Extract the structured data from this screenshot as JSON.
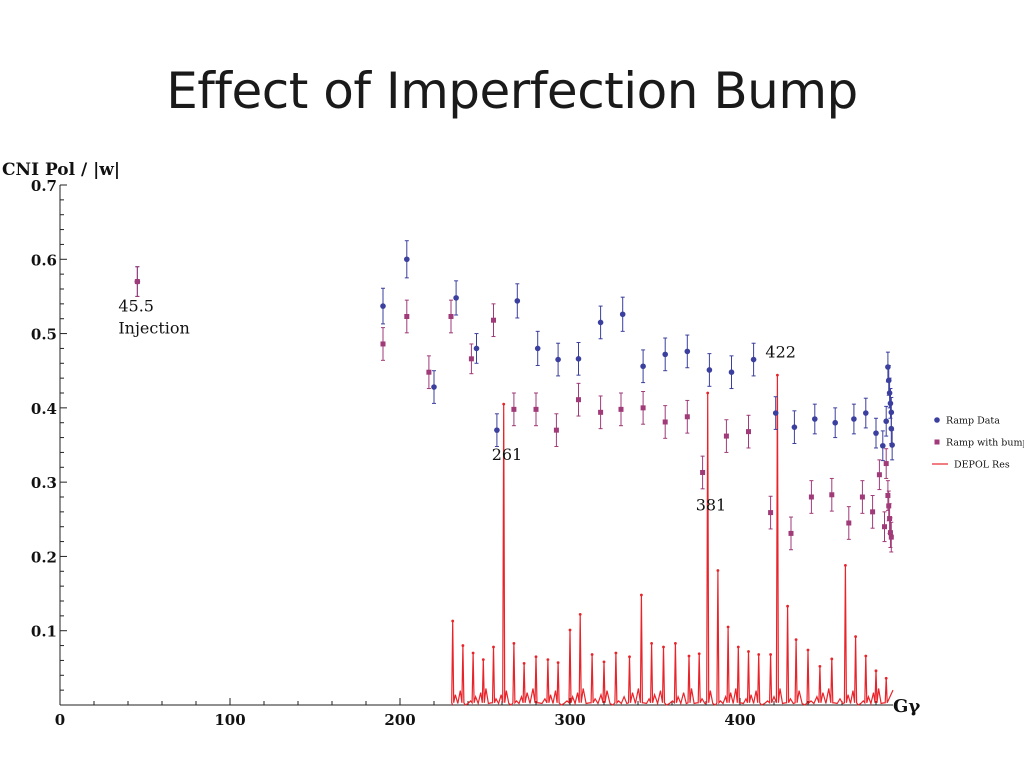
{
  "slide": {
    "title": "Effect of Imperfection Bump"
  },
  "chart_data": {
    "type": "scatter",
    "title": "",
    "ylabel": "CNI Pol / |w|",
    "xlabel": "Gγ",
    "xlim": [
      0,
      490
    ],
    "ylim": [
      0,
      0.7
    ],
    "x_ticks": [
      0,
      100,
      200,
      300,
      400
    ],
    "y_ticks": [
      0.1,
      0.2,
      0.3,
      0.4,
      0.5,
      0.6,
      0.7
    ],
    "x_tick_labels": [
      "0",
      "100",
      "200",
      "300",
      "400"
    ],
    "y_tick_labels": [
      "0.1",
      "0.2",
      "0.3",
      "0.4",
      "0.5",
      "0.6",
      "0.7"
    ],
    "legend_position": "right",
    "series": [
      {
        "name": "Ramp Data",
        "color": "#3b3f9e",
        "marker": "circle",
        "points": [
          [
            45.5,
            0.57,
            0.02
          ],
          [
            190,
            0.537,
            0.024
          ],
          [
            204,
            0.6,
            0.025
          ],
          [
            220,
            0.428,
            0.022
          ],
          [
            233,
            0.548,
            0.023
          ],
          [
            245,
            0.48,
            0.02
          ],
          [
            257,
            0.37,
            0.022
          ],
          [
            269,
            0.544,
            0.023
          ],
          [
            281,
            0.48,
            0.023
          ],
          [
            293,
            0.465,
            0.022
          ],
          [
            305,
            0.466,
            0.022
          ],
          [
            318,
            0.515,
            0.022
          ],
          [
            331,
            0.526,
            0.023
          ],
          [
            343,
            0.456,
            0.022
          ],
          [
            356,
            0.472,
            0.022
          ],
          [
            369,
            0.476,
            0.022
          ],
          [
            382,
            0.451,
            0.022
          ],
          [
            395,
            0.448,
            0.022
          ],
          [
            408,
            0.465,
            0.022
          ],
          [
            421,
            0.393,
            0.022
          ],
          [
            432,
            0.374,
            0.022
          ],
          [
            444,
            0.385,
            0.02
          ],
          [
            456,
            0.38,
            0.02
          ],
          [
            467,
            0.385,
            0.02
          ],
          [
            474,
            0.393,
            0.02
          ],
          [
            480,
            0.366,
            0.02
          ],
          [
            484,
            0.349,
            0.02
          ],
          [
            486,
            0.382,
            0.02
          ],
          [
            487,
            0.455,
            0.02
          ],
          [
            487.5,
            0.437,
            0.02
          ],
          [
            488,
            0.42,
            0.02
          ],
          [
            488.5,
            0.406,
            0.02
          ],
          [
            489,
            0.394,
            0.02
          ],
          [
            489,
            0.372,
            0.02
          ],
          [
            489.5,
            0.35,
            0.02
          ]
        ]
      },
      {
        "name": "Ramp with bump",
        "color": "#a03a78",
        "marker": "square",
        "points": [
          [
            45.5,
            0.57,
            0.02
          ],
          [
            190,
            0.486,
            0.022
          ],
          [
            204,
            0.523,
            0.022
          ],
          [
            217,
            0.448,
            0.022
          ],
          [
            230,
            0.523,
            0.022
          ],
          [
            242,
            0.466,
            0.02
          ],
          [
            255,
            0.518,
            0.022
          ],
          [
            267,
            0.398,
            0.022
          ],
          [
            280,
            0.398,
            0.022
          ],
          [
            292,
            0.37,
            0.022
          ],
          [
            305,
            0.411,
            0.022
          ],
          [
            318,
            0.394,
            0.022
          ],
          [
            330,
            0.398,
            0.022
          ],
          [
            343,
            0.4,
            0.022
          ],
          [
            356,
            0.381,
            0.022
          ],
          [
            369,
            0.388,
            0.022
          ],
          [
            378,
            0.313,
            0.022
          ],
          [
            392,
            0.362,
            0.022
          ],
          [
            405,
            0.368,
            0.022
          ],
          [
            418,
            0.259,
            0.022
          ],
          [
            430,
            0.231,
            0.022
          ],
          [
            442,
            0.28,
            0.022
          ],
          [
            454,
            0.283,
            0.022
          ],
          [
            464,
            0.245,
            0.022
          ],
          [
            472,
            0.28,
            0.022
          ],
          [
            478,
            0.26,
            0.022
          ],
          [
            482,
            0.31,
            0.02
          ],
          [
            485,
            0.24,
            0.02
          ],
          [
            486,
            0.325,
            0.02
          ],
          [
            487,
            0.282,
            0.02
          ],
          [
            487.5,
            0.268,
            0.02
          ],
          [
            488,
            0.251,
            0.02
          ],
          [
            488.5,
            0.232,
            0.02
          ],
          [
            489,
            0.226,
            0.02
          ]
        ]
      },
      {
        "name": "DEPOL Res",
        "color": "#e8242a",
        "type": "line",
        "x_start": 231,
        "x_end": 490,
        "peaks": [
          [
            231,
            0.113
          ],
          [
            237,
            0.08
          ],
          [
            243,
            0.07
          ],
          [
            249,
            0.061
          ],
          [
            255,
            0.078
          ],
          [
            261,
            0.405
          ],
          [
            267,
            0.083
          ],
          [
            273,
            0.056
          ],
          [
            280,
            0.065
          ],
          [
            287,
            0.061
          ],
          [
            293,
            0.057
          ],
          [
            300,
            0.101
          ],
          [
            306,
            0.122
          ],
          [
            313,
            0.068
          ],
          [
            320,
            0.058
          ],
          [
            327,
            0.07
          ],
          [
            335,
            0.065
          ],
          [
            342,
            0.148
          ],
          [
            348,
            0.083
          ],
          [
            355,
            0.078
          ],
          [
            362,
            0.083
          ],
          [
            370,
            0.066
          ],
          [
            376,
            0.069
          ],
          [
            381,
            0.42
          ],
          [
            387,
            0.181
          ],
          [
            393,
            0.105
          ],
          [
            399,
            0.078
          ],
          [
            405,
            0.072
          ],
          [
            411,
            0.068
          ],
          [
            418,
            0.068
          ],
          [
            422,
            0.444
          ],
          [
            428,
            0.133
          ],
          [
            433,
            0.088
          ],
          [
            440,
            0.074
          ],
          [
            447,
            0.052
          ],
          [
            454,
            0.062
          ],
          [
            462,
            0.188
          ],
          [
            468,
            0.092
          ],
          [
            474,
            0.066
          ],
          [
            480,
            0.046
          ],
          [
            486,
            0.036
          ]
        ]
      }
    ],
    "annotations": [
      {
        "text": "45.5",
        "x": 45.5,
        "y": 0.53
      },
      {
        "text": "Injection",
        "x": 45.5,
        "y": 0.5
      },
      {
        "text": "261",
        "x": 261,
        "y": 0.33
      },
      {
        "text": "381",
        "x": 381,
        "y": 0.262
      },
      {
        "text": "422",
        "x": 422,
        "y": 0.468
      }
    ]
  }
}
